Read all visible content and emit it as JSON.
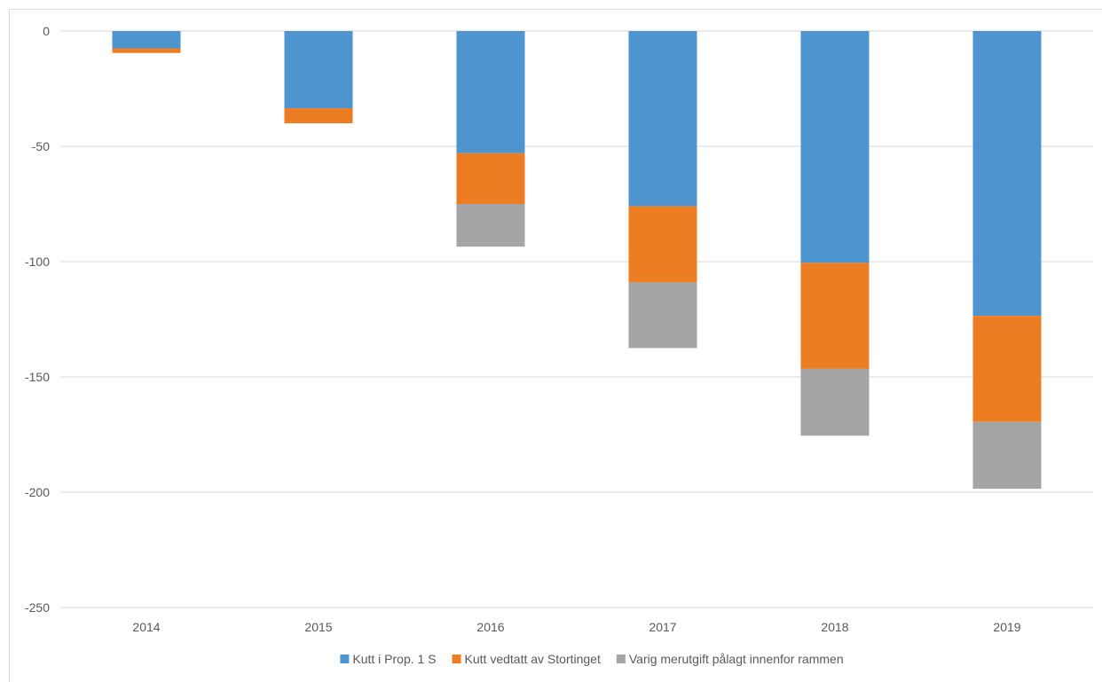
{
  "chart_data": {
    "type": "bar",
    "stacked": true,
    "title": "",
    "xlabel": "",
    "ylabel": "",
    "categories": [
      "2014",
      "2015",
      "2016",
      "2017",
      "2018",
      "2019"
    ],
    "ylim": [
      -250,
      0
    ],
    "yticks": [
      0,
      -50,
      -100,
      -150,
      -200,
      -250
    ],
    "ytick_labels": [
      "0",
      "-50",
      "-100",
      "-150",
      "-200",
      "-250"
    ],
    "grid": true,
    "legend_position": "bottom",
    "series": [
      {
        "name": "Kutt i Prop. 1 S",
        "color": "#4e95d0",
        "values": [
          -7.5,
          -33.5,
          -53,
          -76,
          -100.5,
          -123.5
        ]
      },
      {
        "name": "Kutt vedtatt av Stortinget",
        "color": "#ed7d22",
        "values": [
          -2,
          -6.5,
          -22,
          -33,
          -46,
          -46
        ]
      },
      {
        "name": "Varig merutgift pålagt innenfor rammen",
        "color": "#a5a5a5",
        "values": [
          0,
          0,
          -18.5,
          -28.5,
          -29,
          -29
        ]
      }
    ]
  }
}
